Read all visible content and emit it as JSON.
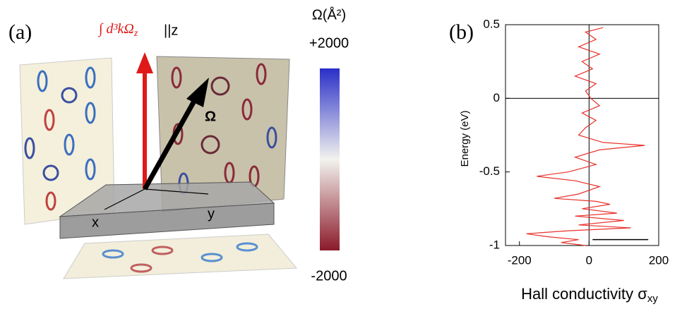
{
  "panel_a": {
    "label": "(a)",
    "integral": "∫ d³kΩ",
    "integral_sub": "z",
    "parallel": "||z",
    "omega": "Ω",
    "axis_x": "x",
    "axis_y": "y",
    "colorbar": {
      "label": "Ω(Å²)",
      "ticks": [
        {
          "value": 2000,
          "label": "+2000"
        },
        -2000
      ],
      "colors": [
        "#2a2fc8",
        "#f3f3ee",
        "#8b1a2a"
      ]
    }
  },
  "chart_data": {
    "type": "line",
    "panel_label": "(b)",
    "y_label": "Energy (eV)",
    "x_label": "Hall conductivity σ",
    "x_label_sub": "xy",
    "xlim": [
      -240,
      200
    ],
    "xticks": [
      -200,
      0,
      200
    ],
    "ylim": [
      -1,
      0.5
    ],
    "yticks": [
      0.5,
      0,
      -0.5,
      -1
    ],
    "zero_lines": true,
    "series": [
      {
        "color": "#e8302a",
        "x": [
          40,
          -10,
          20,
          -30,
          30,
          -20,
          10,
          -40,
          20,
          -10,
          5,
          30,
          -20,
          20,
          -10,
          -30,
          40,
          160,
          30,
          -40,
          20,
          -60,
          -150,
          -40,
          30,
          -30,
          -100,
          20,
          60,
          -20,
          80,
          -40,
          100,
          -30,
          120,
          -60,
          -180,
          -120,
          -30,
          -80,
          -10
        ],
        "y": [
          0.48,
          0.45,
          0.4,
          0.35,
          0.3,
          0.25,
          0.2,
          0.15,
          0.1,
          0.05,
          0,
          -0.05,
          -0.1,
          -0.15,
          -0.2,
          -0.25,
          -0.3,
          -0.32,
          -0.35,
          -0.4,
          -0.45,
          -0.5,
          -0.53,
          -0.56,
          -0.6,
          -0.65,
          -0.68,
          -0.7,
          -0.72,
          -0.75,
          -0.78,
          -0.8,
          -0.83,
          -0.86,
          -0.88,
          -0.9,
          -0.92,
          -0.94,
          -0.96,
          -0.98,
          -1
        ]
      }
    ],
    "reference_segment": {
      "x": [
        10,
        170
      ],
      "y": -0.96
    }
  }
}
